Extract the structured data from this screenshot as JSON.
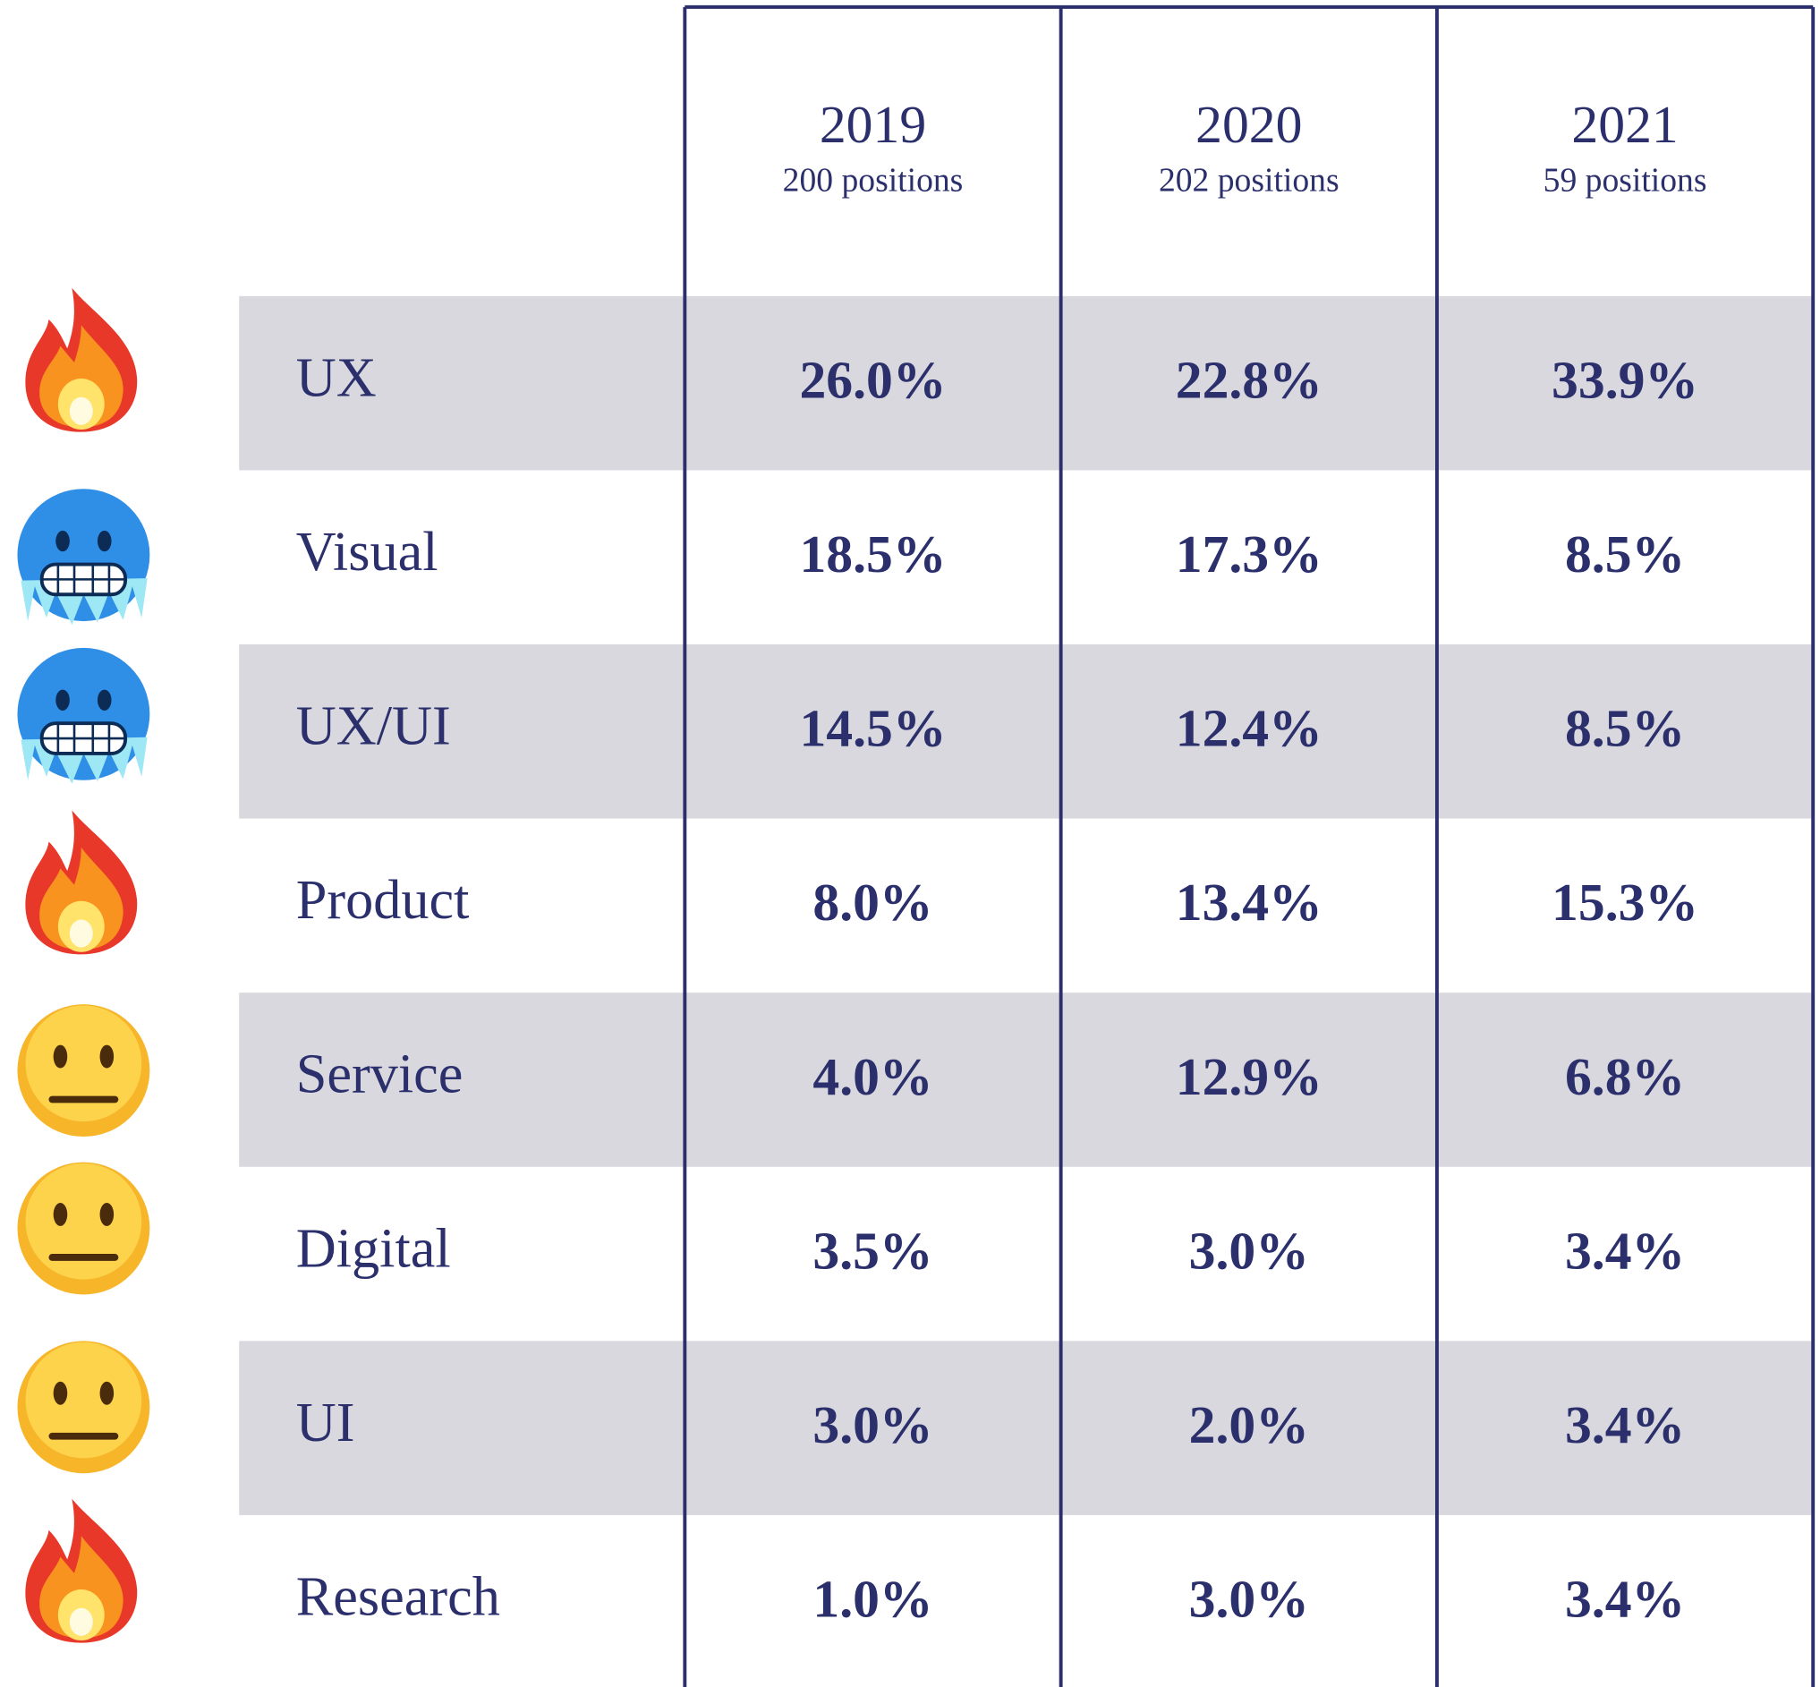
{
  "table": {
    "columns": [
      {
        "year": "2019",
        "positions": "200 positions"
      },
      {
        "year": "2020",
        "positions": "202 positions"
      },
      {
        "year": "2021",
        "positions": "59 positions"
      }
    ],
    "rows": [
      {
        "label": "UX",
        "values": [
          "26.0%",
          "22.8%",
          "33.9%"
        ]
      },
      {
        "label": "Visual",
        "values": [
          "18.5%",
          "17.3%",
          "8.5%"
        ]
      },
      {
        "label": "UX/UI",
        "values": [
          "14.5%",
          "12.4%",
          "8.5%"
        ]
      },
      {
        "label": "Product",
        "values": [
          "8.0%",
          "13.4%",
          "15.3%"
        ]
      },
      {
        "label": "Service",
        "values": [
          "4.0%",
          "12.9%",
          "6.8%"
        ]
      },
      {
        "label": "Digital",
        "values": [
          "3.5%",
          "3.0%",
          "3.4%"
        ]
      },
      {
        "label": "UI",
        "values": [
          "3.0%",
          "2.0%",
          "3.4%"
        ]
      },
      {
        "label": "Research",
        "values": [
          "1.0%",
          "3.0%",
          "3.4%"
        ]
      }
    ]
  }
}
